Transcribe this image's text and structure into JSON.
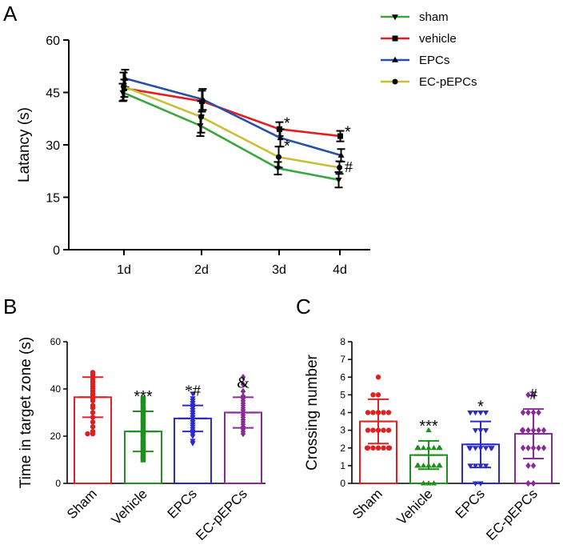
{
  "chart_data": [
    {
      "panel": "A",
      "type": "line",
      "ylabel": "Latancy (s)",
      "xlabel": "",
      "categories": [
        "1d",
        "2d",
        "3d",
        "4d"
      ],
      "ylim": [
        0,
        60
      ],
      "yticks": [
        "0",
        "15",
        "30",
        "45",
        "60"
      ],
      "series": [
        {
          "name": "sham",
          "color": "#3aa640",
          "marker": "triangle-down",
          "values": [
            45,
            35.5,
            23.3,
            20
          ],
          "errors": [
            2.5,
            3,
            1.8,
            2.2
          ]
        },
        {
          "name": "vehicle",
          "color": "#e02020",
          "marker": "square",
          "values": [
            46.2,
            42.5,
            34.5,
            32.5
          ],
          "errors": [
            2.5,
            3,
            2,
            1.5
          ]
        },
        {
          "name": "EPCs",
          "color": "#2a4fa8",
          "marker": "triangle-up",
          "values": [
            49,
            43,
            32,
            27
          ],
          "errors": [
            2.5,
            3,
            2.5,
            1.8
          ]
        },
        {
          "name": "EC-pEPCs",
          "color": "#c8c036",
          "marker": "circle",
          "values": [
            46.7,
            38,
            26.5,
            23.5
          ],
          "errors": [
            4,
            4.5,
            3,
            1.8
          ]
        }
      ],
      "annotations": [
        {
          "text": "*",
          "day": "3d",
          "y": 36.5,
          "sym": "sig"
        },
        {
          "text": "*",
          "day": "3d",
          "y": 30,
          "sym": "sig"
        },
        {
          "text": "*",
          "day": "4d",
          "y": 34,
          "sym": "sig"
        },
        {
          "text": "#",
          "day": "4d",
          "y": 24,
          "sym": "sig-serif"
        }
      ]
    },
    {
      "panel": "B",
      "type": "bar",
      "ylabel": "Time in target zone (s)",
      "categories": [
        "Sham",
        "Vehicle",
        "EPCs",
        "EC-pEPCs"
      ],
      "ylim": [
        0,
        60
      ],
      "yticks": [
        "0",
        "20",
        "40",
        "60"
      ],
      "colors": [
        "#e02020",
        "#1f8f1f",
        "#2a2ac8",
        "#8a2a9a"
      ],
      "markers": [
        "circle",
        "square",
        "triangle-down",
        "diamond"
      ],
      "means": [
        36.5,
        22,
        27.5,
        30
      ],
      "sd": [
        8.5,
        8.5,
        5.5,
        6.5
      ],
      "points": [
        [
          47,
          46,
          45,
          44,
          43,
          42,
          41,
          40,
          39,
          38,
          37,
          36,
          35,
          33,
          32,
          30,
          28,
          26,
          24,
          22,
          21,
          21
        ],
        [
          36,
          35,
          34,
          32,
          31,
          29,
          27,
          26,
          24,
          22,
          21,
          20,
          18,
          17,
          16,
          15,
          14,
          12,
          11,
          10
        ],
        [
          38,
          36,
          35,
          34,
          33,
          32,
          31,
          30,
          29,
          28,
          27,
          26,
          25,
          24,
          23,
          22,
          21,
          20,
          18,
          17
        ],
        [
          45,
          42,
          39,
          37,
          36,
          35,
          34,
          33,
          32,
          31,
          30,
          29,
          28,
          27,
          26,
          25,
          24,
          23,
          22,
          21
        ]
      ],
      "significance": [
        "",
        "***",
        "*#",
        "&"
      ]
    },
    {
      "panel": "C",
      "type": "bar",
      "ylabel": "Crossing number",
      "categories": [
        "Sham",
        "Vehicle",
        "EPCs",
        "EC-pEPCs"
      ],
      "ylim": [
        0,
        8
      ],
      "yticks": [
        "0",
        "1",
        "2",
        "3",
        "4",
        "5",
        "6",
        "7",
        "8"
      ],
      "colors": [
        "#e02020",
        "#1f8f1f",
        "#2a2ac8",
        "#8a2a9a"
      ],
      "markers": [
        "circle",
        "triangle-up",
        "triangle-down",
        "diamond"
      ],
      "means": [
        3.5,
        1.6,
        2.2,
        2.8
      ],
      "sd": [
        1.25,
        0.8,
        1.3,
        1.4
      ],
      "points": [
        [
          6,
          5,
          5,
          4,
          4,
          4,
          4,
          4,
          3,
          3,
          3,
          3,
          3,
          2,
          2,
          2,
          2,
          2,
          2,
          2
        ],
        [
          3,
          2,
          2,
          2,
          2,
          2,
          2,
          2,
          2,
          1,
          1,
          1,
          1,
          1,
          1,
          1,
          1,
          0,
          0,
          0
        ],
        [
          4,
          4,
          4,
          4,
          3,
          3,
          3,
          2,
          2,
          2,
          2,
          2,
          2,
          2,
          1,
          1,
          1,
          1,
          0,
          0
        ],
        [
          5,
          5,
          4,
          4,
          4,
          4,
          3,
          3,
          3,
          3,
          3,
          3,
          2,
          2,
          2,
          2,
          2,
          1,
          1,
          0,
          0
        ]
      ],
      "significance": [
        "",
        "***",
        "*",
        "#"
      ]
    }
  ]
}
